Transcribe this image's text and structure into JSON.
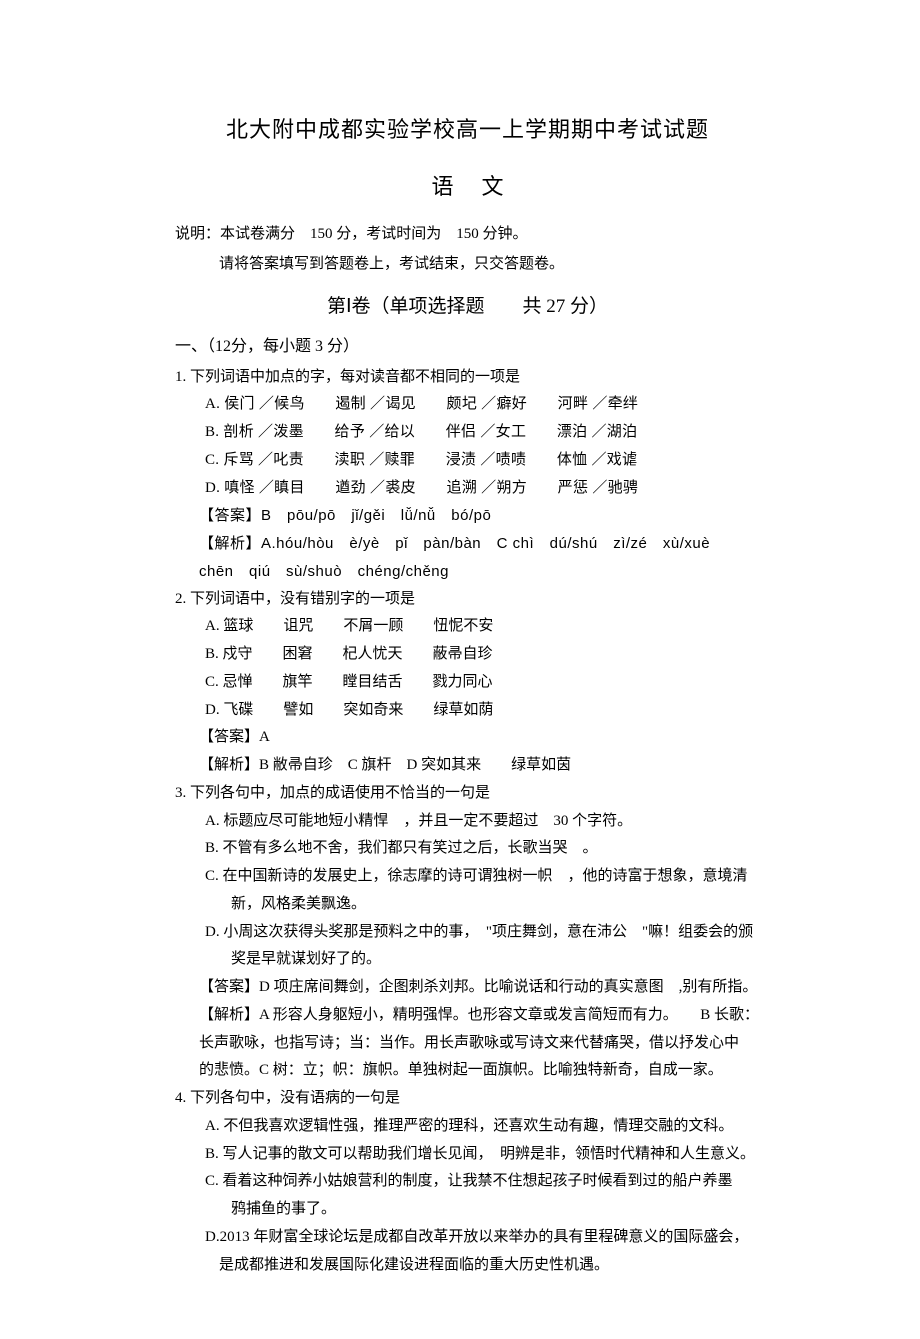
{
  "doc": {
    "title": "北大附中成都实验学校高一上学期期中考试试题",
    "subject": "语文",
    "instr1": "说明：本试卷满分　150 分，考试时间为　150 分钟。",
    "instr2": "请将答案填写到答题卷上，考试结束，只交答题卷。",
    "section1": "第Ⅰ卷（单项选择题　　共 27 分）",
    "part1": "一、（12分，每小题 3 分）"
  },
  "q1": {
    "stem": "1. 下列词语中加点的字，每对读音都不相同的一项是",
    "A": "A. 侯门 ／候鸟　　遏制 ／谒见　　颇圮 ／癖好　　河畔 ／牵绊",
    "B": "B. 剖析 ／泼墨　　给予 ／给以　　伴侣 ／女工　　漂泊 ／湖泊",
    "C": "C. 斥骂 ／叱责　　渎职 ／赎罪　　浸渍 ／啧啧　　体恤 ／戏谑",
    "D": "D. 嗔怪 ／瞋目　　遒劲 ／裘皮　　追溯 ／朔方　　严惩 ／驰骋",
    "ans": "【答案】B　pōu/pō　jǐ/gěi　lǚ/nǚ　bó/pō",
    "exp1": "【解析】A.hóu/hòu　è/yè　pǐ　pàn/bàn　C chì　dú/shú　zì/zé　xù/xuè",
    "exp2": "chēn　qiú　sù/shuò　chéng/chěng"
  },
  "q2": {
    "stem": "2. 下列词语中，没有错别字的一项是",
    "A": "A. 篮球　　诅咒　　不屑一顾　　忸怩不安",
    "B": "B. 戍守　　困窘　　杞人忧天　　蔽帚自珍",
    "C": "C. 忌惮　　旗竿　　瞠目结舌　　戮力同心",
    "D": "D. 飞碟　　譬如　　突如奇来　　绿草如荫",
    "ans": "【答案】A",
    "exp": "【解析】B 敝帚自珍　C 旗杆　D 突如其来　　绿草如茵"
  },
  "q3": {
    "stem": "3. 下列各句中，加点的成语使用不恰当的一句是",
    "A": "A. 标题应尽可能地短小精悍　，并且一定不要超过　30 个字符。",
    "B": "B. 不管有多么地不舍，我们都只有笑过之后，长歌当哭　。",
    "C1": "C. 在中国新诗的发展史上，徐志摩的诗可谓独树一帜　，他的诗富于想象，意境清",
    "C2": "新，风格柔美飘逸。",
    "D1": "D. 小周这次获得头奖那是预料之中的事，　\"项庄舞剑，意在沛公　\"嘛！组委会的颁",
    "D2": "奖是早就谋划好了的。",
    "ans": "【答案】D 项庄席间舞剑，企图刺杀刘邦。比喻说话和行动的真实意图　,别有所指。",
    "exp1": "【解析】A 形容人身躯短小，精明强悍。也形容文章或发言简短而有力。　　B 长歌：",
    "exp2": "长声歌咏，也指写诗；当：当作。用长声歌咏或写诗文来代替痛哭，借以抒发心中",
    "exp3": "的悲愤。C 树：立；帜：旗帜。单独树起一面旗帜。比喻独特新奇，自成一家。"
  },
  "q4": {
    "stem": "4. 下列各句中，没有语病的一句是",
    "A": "A. 不但我喜欢逻辑性强，推理严密的理科，还喜欢生动有趣，情理交融的文科。",
    "B": "B. 写人记事的散文可以帮助我们增长见闻，　明辨是非，领悟时代精神和人生意义。",
    "C1": "C. 看着这种饲养小姑娘营利的制度，让我禁不住想起孩子时候看到过的船户养墨",
    "C2": "鸦捕鱼的事了。",
    "D1": "D.2013 年财富全球论坛是成都自改革开放以来举办的具有里程碑意义的国际盛会，",
    "D2": "是成都推进和发展国际化建设进程面临的重大历史性机遇。"
  }
}
